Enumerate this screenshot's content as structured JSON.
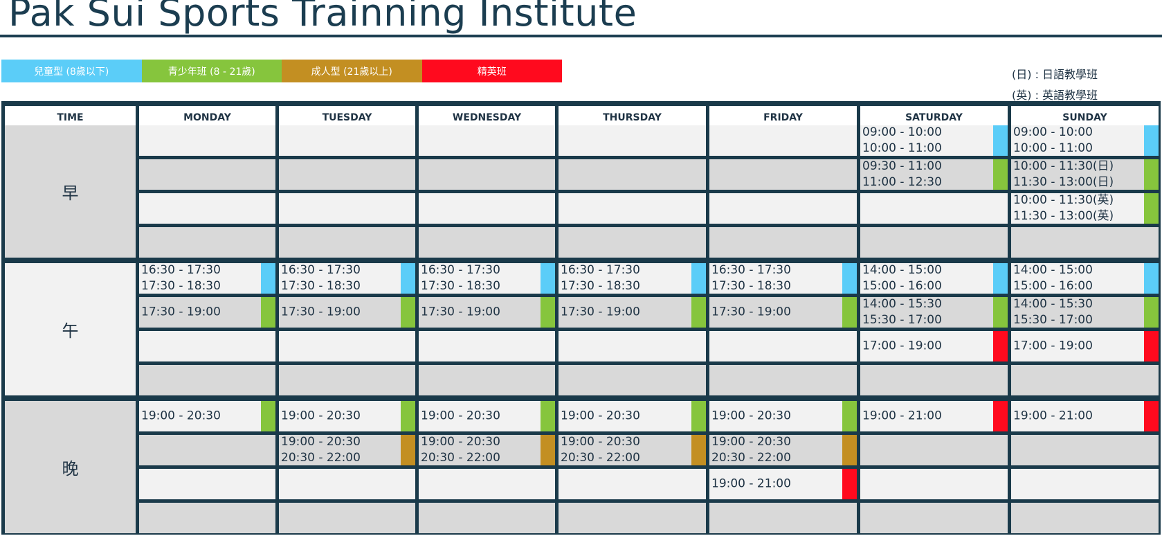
{
  "title": "Pak Sui Sports Trainning Institute",
  "legend": [
    {
      "label": "兒童型 (8歲以下)",
      "color": "#5bcdf8"
    },
    {
      "label": "青少年班 (8 - 21歲)",
      "color": "#86c53d"
    },
    {
      "label": "成人型 (21歲以上)",
      "color": "#c38f22"
    },
    {
      "label": "精英班",
      "color": "#ff0a1e"
    }
  ],
  "notes": [
    "(日) : 日語教學班",
    "(英) : 英語教學班"
  ],
  "headers": [
    "TIME",
    "MONDAY",
    "TUESDAY",
    "WEDNESDAY",
    "THURSDAY",
    "FRIDAY",
    "SATURDAY",
    "SUNDAY"
  ],
  "periods": [
    "早",
    "午",
    "晚"
  ],
  "class_colors": {
    "kids": "#5bcdf8",
    "youth": "#86c53d",
    "adult": "#c38f22",
    "elite": "#ff0a1e"
  },
  "schedule": {
    "rows": [
      [
        null,
        null,
        null,
        null,
        null,
        {
          "lines": [
            "09:00 - 10:00",
            "10:00 - 11:00"
          ],
          "class": "kids"
        },
        {
          "lines": [
            "09:00 - 10:00",
            "10:00 - 11:00"
          ],
          "class": "kids"
        }
      ],
      [
        null,
        null,
        null,
        null,
        null,
        {
          "lines": [
            "09:30 - 11:00",
            "11:00 - 12:30"
          ],
          "class": "youth"
        },
        {
          "lines": [
            "10:00 - 11:30(日)",
            "11:30 - 13:00(日)"
          ],
          "class": "youth"
        }
      ],
      [
        null,
        null,
        null,
        null,
        null,
        null,
        {
          "lines": [
            "10:00 - 11:30(英)",
            "11:30 - 13:00(英)"
          ],
          "class": "youth"
        }
      ],
      [
        null,
        null,
        null,
        null,
        null,
        null,
        null
      ],
      [
        {
          "lines": [
            "16:30 - 17:30",
            "17:30 - 18:30"
          ],
          "class": "kids"
        },
        {
          "lines": [
            "16:30 - 17:30",
            "17:30 - 18:30"
          ],
          "class": "kids"
        },
        {
          "lines": [
            "16:30 - 17:30",
            "17:30 - 18:30"
          ],
          "class": "kids"
        },
        {
          "lines": [
            "16:30 - 17:30",
            "17:30 - 18:30"
          ],
          "class": "kids"
        },
        {
          "lines": [
            "16:30 - 17:30",
            "17:30 - 18:30"
          ],
          "class": "kids"
        },
        {
          "lines": [
            "14:00 - 15:00",
            "15:00 - 16:00"
          ],
          "class": "kids"
        },
        {
          "lines": [
            "14:00 - 15:00",
            "15:00 - 16:00"
          ],
          "class": "kids"
        }
      ],
      [
        {
          "lines": [
            "17:30 - 19:00"
          ],
          "class": "youth"
        },
        {
          "lines": [
            "17:30 - 19:00"
          ],
          "class": "youth"
        },
        {
          "lines": [
            "17:30 - 19:00"
          ],
          "class": "youth"
        },
        {
          "lines": [
            "17:30 - 19:00"
          ],
          "class": "youth"
        },
        {
          "lines": [
            "17:30 - 19:00"
          ],
          "class": "youth"
        },
        {
          "lines": [
            "14:00 - 15:30",
            "15:30 - 17:00"
          ],
          "class": "youth"
        },
        {
          "lines": [
            "14:00 - 15:30",
            "15:30 - 17:00"
          ],
          "class": "youth"
        }
      ],
      [
        null,
        null,
        null,
        null,
        null,
        {
          "lines": [
            "17:00 - 19:00"
          ],
          "class": "elite"
        },
        {
          "lines": [
            "17:00 - 19:00"
          ],
          "class": "elite"
        }
      ],
      [
        null,
        null,
        null,
        null,
        null,
        null,
        null
      ],
      [
        {
          "lines": [
            "19:00 - 20:30"
          ],
          "class": "youth"
        },
        {
          "lines": [
            "19:00 - 20:30"
          ],
          "class": "youth"
        },
        {
          "lines": [
            "19:00 - 20:30"
          ],
          "class": "youth"
        },
        {
          "lines": [
            "19:00 - 20:30"
          ],
          "class": "youth"
        },
        {
          "lines": [
            "19:00 - 20:30"
          ],
          "class": "youth"
        },
        {
          "lines": [
            "19:00 - 21:00"
          ],
          "class": "elite"
        },
        {
          "lines": [
            "19:00 - 21:00"
          ],
          "class": "elite"
        }
      ],
      [
        null,
        {
          "lines": [
            "19:00 - 20:30",
            "20:30 - 22:00"
          ],
          "class": "adult"
        },
        {
          "lines": [
            "19:00 - 20:30",
            "20:30 - 22:00"
          ],
          "class": "adult"
        },
        {
          "lines": [
            "19:00 - 20:30",
            "20:30 - 22:00"
          ],
          "class": "adult"
        },
        {
          "lines": [
            "19:00 - 20:30",
            "20:30 - 22:00"
          ],
          "class": "adult"
        },
        null,
        null
      ],
      [
        null,
        null,
        null,
        null,
        {
          "lines": [
            "19:00 - 21:00"
          ],
          "class": "elite"
        },
        null,
        null
      ],
      [
        null,
        null,
        null,
        null,
        null,
        null,
        null
      ]
    ]
  }
}
